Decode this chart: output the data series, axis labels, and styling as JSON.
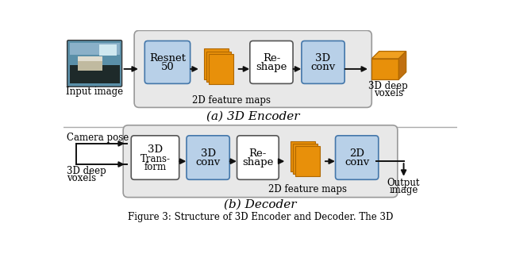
{
  "bg_color": "#ffffff",
  "enc_bg": "#e8e8e8",
  "dec_bg": "#e8e8e8",
  "box_blue": "#b8d0e8",
  "box_white": "#ffffff",
  "orange": "#e8900a",
  "orange_mid": "#f0a020",
  "orange_dark": "#b06800",
  "arrow_color": "#111111",
  "sep_color": "#aaaaaa",
  "title_a": "(a) 3D Encoder",
  "title_b": "(b) Decoder",
  "enc_label": "2D feature maps",
  "dec_label": "2D feature maps",
  "caption": "Figure 3: Structure of 3D Encoder and Decoder. The 3D"
}
